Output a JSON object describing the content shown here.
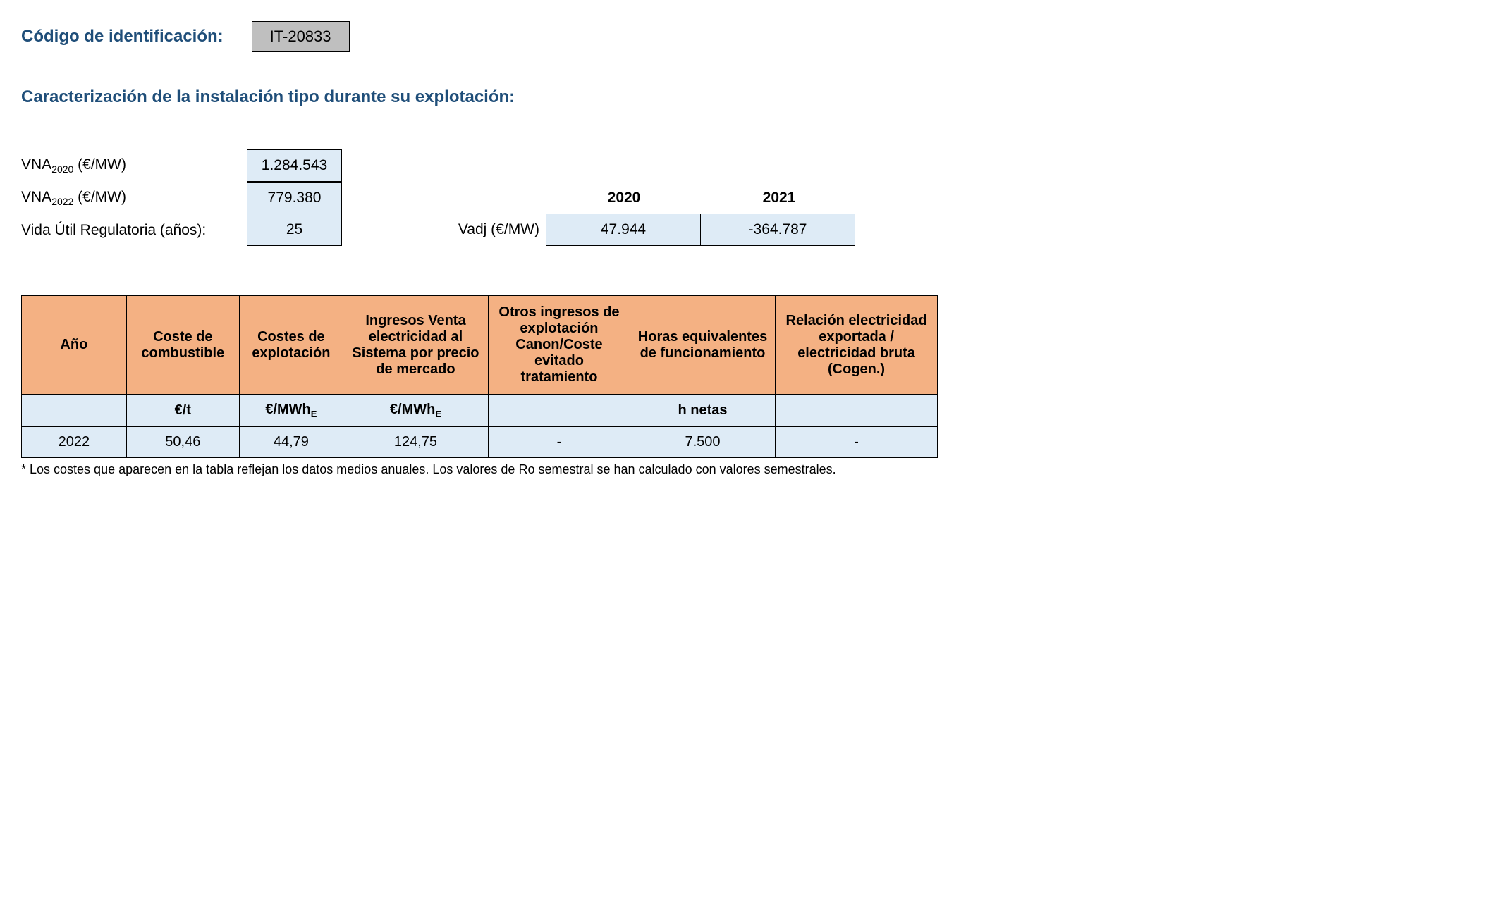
{
  "header": {
    "id_label": "Código de identificación:",
    "id_value": "IT-20833"
  },
  "section_title": "Caracterización de la instalación tipo durante su explotación:",
  "params": {
    "vna2020": {
      "label_prefix": "VNA",
      "label_sub": "2020",
      "label_suffix": " (€/MW)",
      "value": "1.284.543"
    },
    "vna2022": {
      "label_prefix": "VNA",
      "label_sub": "2022",
      "label_suffix": " (€/MW)",
      "value": "779.380"
    },
    "vida": {
      "label": "Vida Útil Regulatoria (años):",
      "value": "25"
    }
  },
  "vadj": {
    "label": "Vadj (€/MW)",
    "years": [
      "2020",
      "2021"
    ],
    "values": [
      "47.944",
      "-364.787"
    ]
  },
  "table": {
    "columns": [
      "Año",
      "Coste de combustible",
      "Costes de explotación",
      "Ingresos Venta electricidad al Sistema por precio de mercado",
      "Otros ingresos de explotación Canon/Coste evitado tratamiento",
      "Horas equivalentes de funcionamiento",
      "Relación electricidad exportada / electricidad bruta (Cogen.)"
    ],
    "col_widths": [
      "155px",
      "150px",
      "135px",
      "210px",
      "200px",
      "200px",
      "240px"
    ],
    "units": [
      "",
      "€/t",
      "€/MWhE",
      "€/MWhE",
      "",
      "h netas",
      ""
    ],
    "rows": [
      [
        "2022",
        "50,46",
        "44,79",
        "124,75",
        "-",
        "7.500",
        "-"
      ]
    ],
    "footnote": "* Los costes que aparecen en la tabla reflejan los datos medios anuales. Los valores de Ro semestral se han calculado con valores semestrales."
  },
  "colors": {
    "header_bg": "#f4b183",
    "cell_bg": "#deebf6",
    "id_bg": "#bfbfbf",
    "title_color": "#1f4e79",
    "border": "#000000"
  }
}
